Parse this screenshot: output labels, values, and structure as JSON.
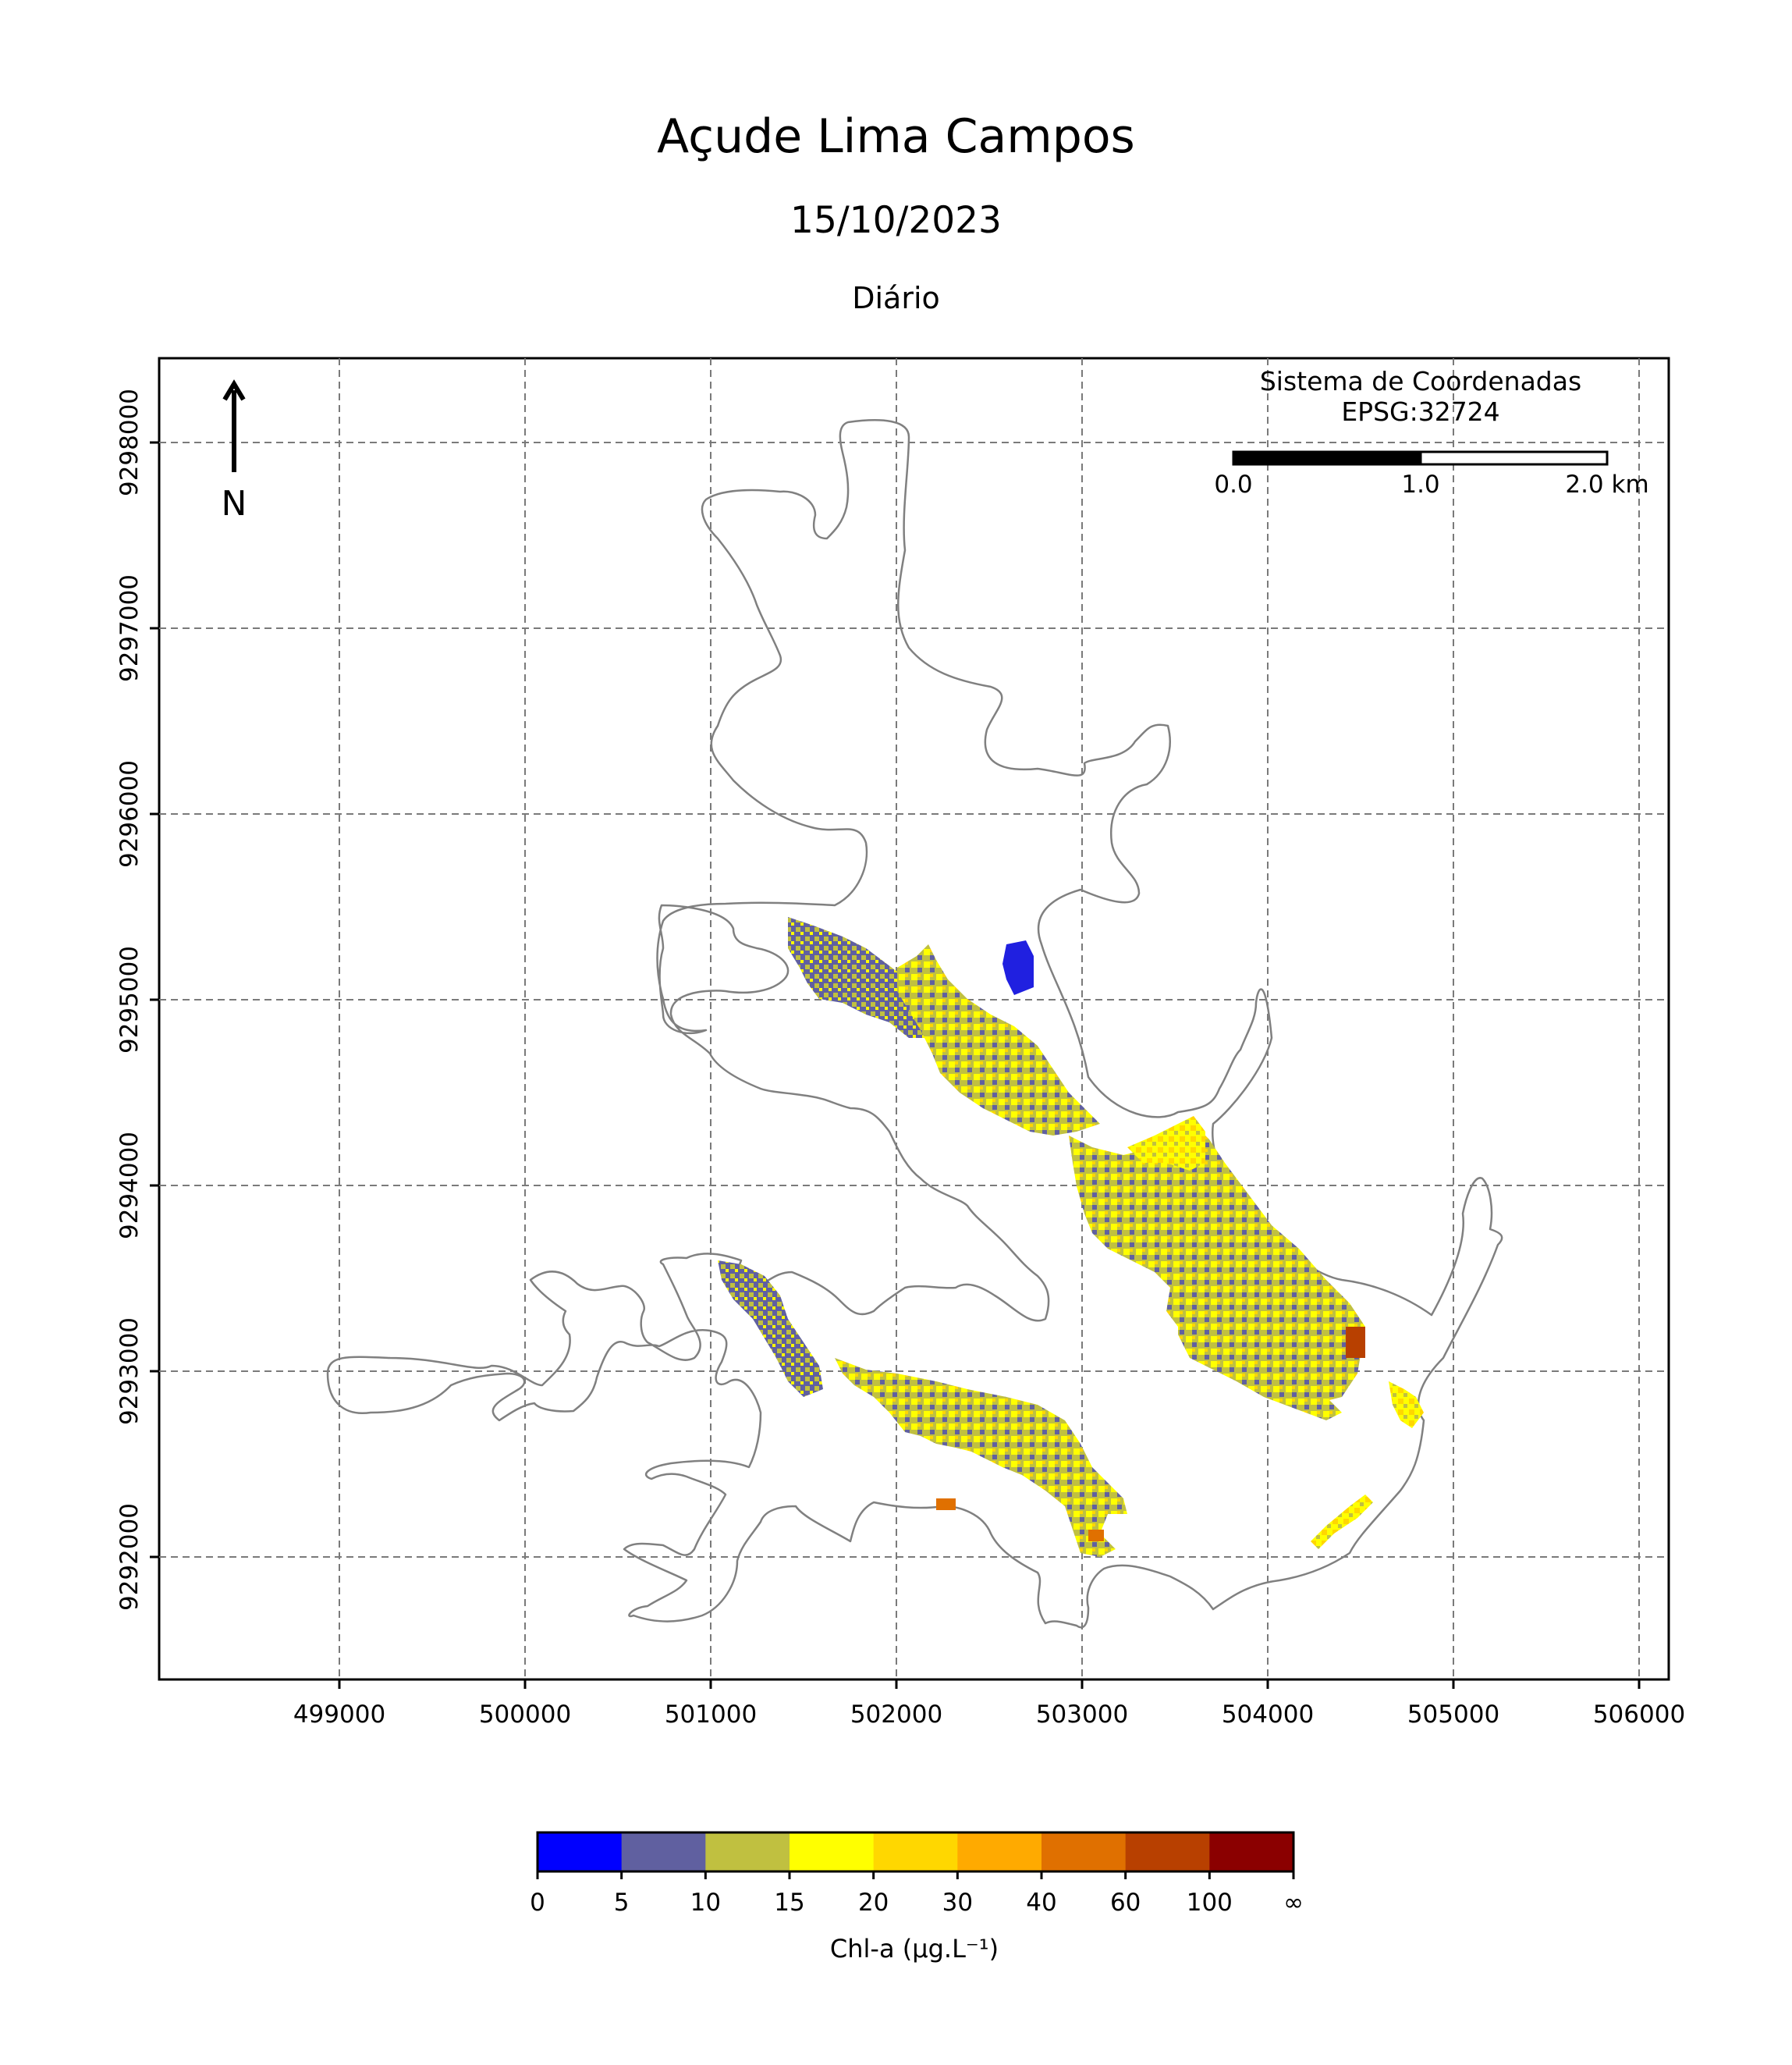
{
  "map": {
    "title": "Açude Lima Campos",
    "date": "15/10/2023",
    "period": "Diário",
    "crs_title": "Sistema de Coordenadas",
    "crs_code": "EPSG:32724",
    "north_label": "N",
    "x_ticks": [
      "499000",
      "500000",
      "501000",
      "502000",
      "503000",
      "504000",
      "505000",
      "506000"
    ],
    "y_ticks": [
      "9292000",
      "9293000",
      "9294000",
      "9295000",
      "9296000",
      "9297000",
      "9298000"
    ],
    "scale_labels": [
      "0.0",
      "1.0",
      "2.0 km"
    ]
  },
  "legend": {
    "label": "Chl-a (μg.L⁻¹)",
    "classes": [
      {
        "from": "0",
        "to": "5",
        "color": "#0000ff"
      },
      {
        "from": "5",
        "to": "10",
        "color": "#6060a0"
      },
      {
        "from": "10",
        "to": "15",
        "color": "#c0c040"
      },
      {
        "from": "15",
        "to": "20",
        "color": "#ffff00"
      },
      {
        "from": "20",
        "to": "30",
        "color": "#ffd700"
      },
      {
        "from": "30",
        "to": "40",
        "color": "#ffaa00"
      },
      {
        "from": "40",
        "to": "60",
        "color": "#e07000"
      },
      {
        "from": "60",
        "to": "100",
        "color": "#b84000"
      },
      {
        "from": "100",
        "to": "∞",
        "color": "#8b0000"
      }
    ],
    "tick_labels": [
      "0",
      "5",
      "10",
      "15",
      "20",
      "30",
      "40",
      "60",
      "100",
      "∞"
    ]
  }
}
